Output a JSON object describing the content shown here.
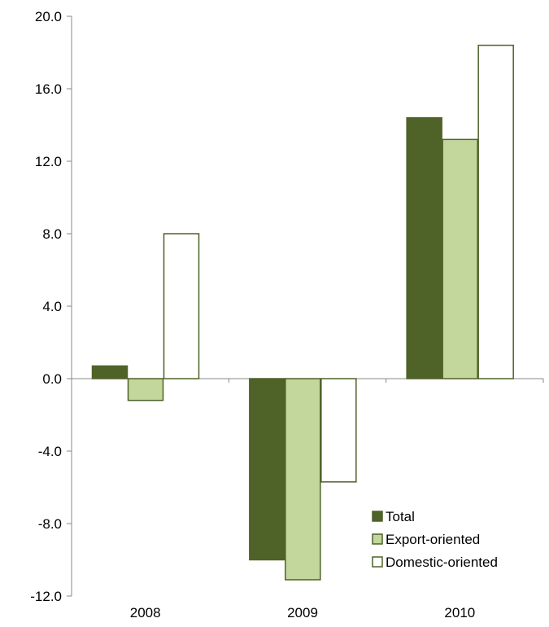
{
  "chart_data": {
    "type": "bar",
    "categories": [
      "2008",
      "2009",
      "2010"
    ],
    "series": [
      {
        "name": "Total",
        "values": [
          0.7,
          -10.0,
          14.4
        ],
        "color": "#4f6228",
        "stroke": "#4f6228"
      },
      {
        "name": "Export-oriented",
        "values": [
          -1.2,
          -11.1,
          13.2
        ],
        "color": "#c3d69b",
        "stroke": "#4f6228"
      },
      {
        "name": "Domestic-oriented",
        "values": [
          8.0,
          -5.7,
          18.4
        ],
        "color": "#ffffff",
        "stroke": "#4f6228"
      }
    ],
    "y_ticks": [
      "20.0",
      "16.0",
      "12.0",
      "8.0",
      "4.0",
      "0.0",
      "-4.0",
      "-8.0",
      "-12.0"
    ],
    "ylim": [
      -12,
      20
    ],
    "title": "",
    "xlabel": "",
    "ylabel": "",
    "legend": "bottom-right",
    "grid": false
  }
}
